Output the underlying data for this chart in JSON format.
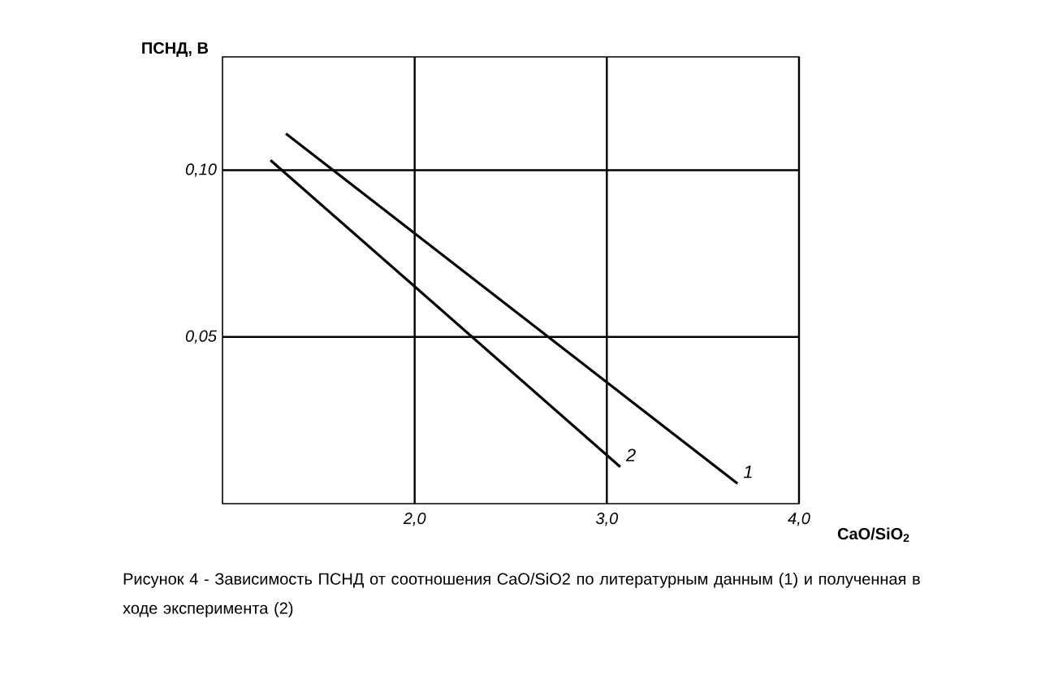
{
  "chart_data": {
    "type": "line",
    "xlabel": "CaO/SiO$_{2}$",
    "ylabel": "ПСНД, В",
    "xlim": [
      1.0,
      4.0
    ],
    "ylim": [
      0,
      0.134
    ],
    "xticks": [
      {
        "value": 2.0,
        "label": "2,0"
      },
      {
        "value": 3.0,
        "label": "3,0"
      },
      {
        "value": 4.0,
        "label": "4,0"
      }
    ],
    "yticks": [
      {
        "value": 0.05,
        "label": "0,05"
      },
      {
        "value": 0.1,
        "label": "0,10"
      }
    ],
    "grid": true,
    "line_style": "solid",
    "series": [
      {
        "name": "1",
        "color": "#000000",
        "x": [
          1.33,
          3.68
        ],
        "values": [
          0.111,
          0.006
        ]
      },
      {
        "name": "2",
        "color": "#000000",
        "x": [
          1.25,
          3.07
        ],
        "values": [
          0.103,
          0.011
        ]
      }
    ],
    "annotations": [
      "Рисунок 4 - Зависимость ПСНД от соотношения CaO/SiO2 по литературным данным (1) и полученная в ходе эксперимента (2)"
    ]
  }
}
